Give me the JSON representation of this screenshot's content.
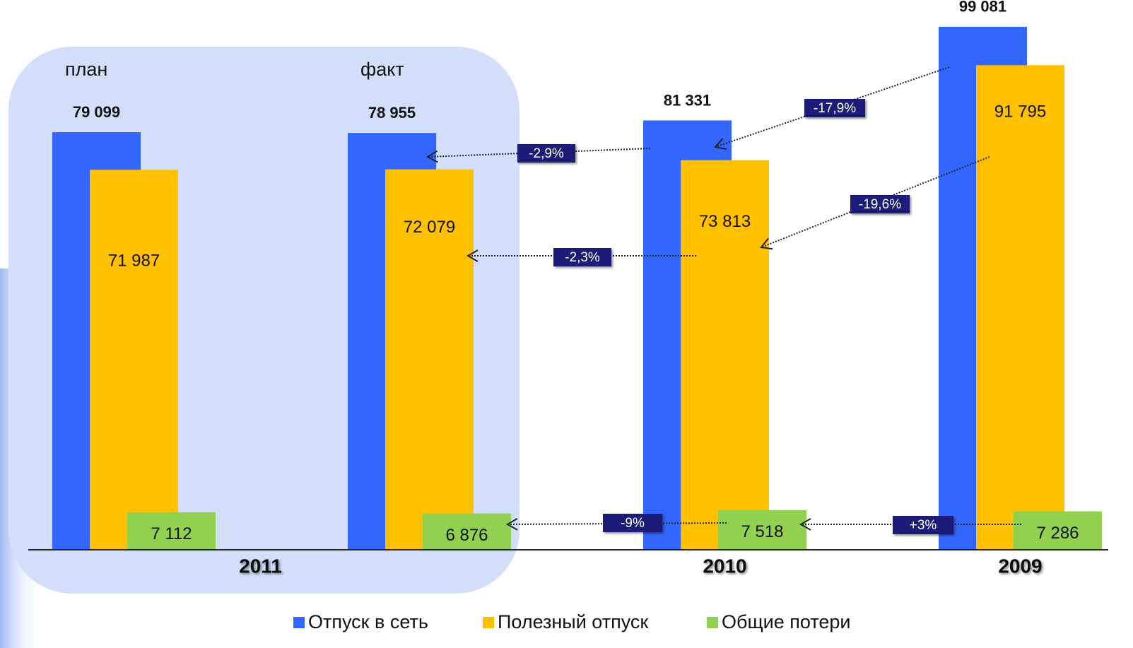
{
  "chart_data": {
    "type": "bar",
    "categories": [
      "план",
      "факт",
      null,
      null
    ],
    "year_labels": [
      "2011",
      "2010",
      "2009"
    ],
    "series": [
      {
        "name": "Отпуск в сеть",
        "color": "#3366ff",
        "values": [
          79099,
          78955,
          81331,
          99081
        ],
        "value_labels": [
          "79 099",
          "78 955",
          "81 331",
          "99 081"
        ]
      },
      {
        "name": "Полезный отпуск",
        "color": "#ffc000",
        "values": [
          71987,
          72079,
          73813,
          91795
        ],
        "value_labels": [
          "71 987",
          "72 079",
          "73 813",
          "91 795"
        ]
      },
      {
        "name": "Общие потери",
        "color": "#92d050",
        "values": [
          7112,
          6876,
          7518,
          7286
        ],
        "value_labels": [
          "7 112",
          "6 876",
          "7 518",
          "7 286"
        ]
      }
    ],
    "annotations": [
      "-2,9%",
      "-17,9%",
      "-2,3%",
      "-19,6%",
      "-9%",
      "+3%"
    ],
    "ylim": [
      0,
      100000
    ]
  }
}
